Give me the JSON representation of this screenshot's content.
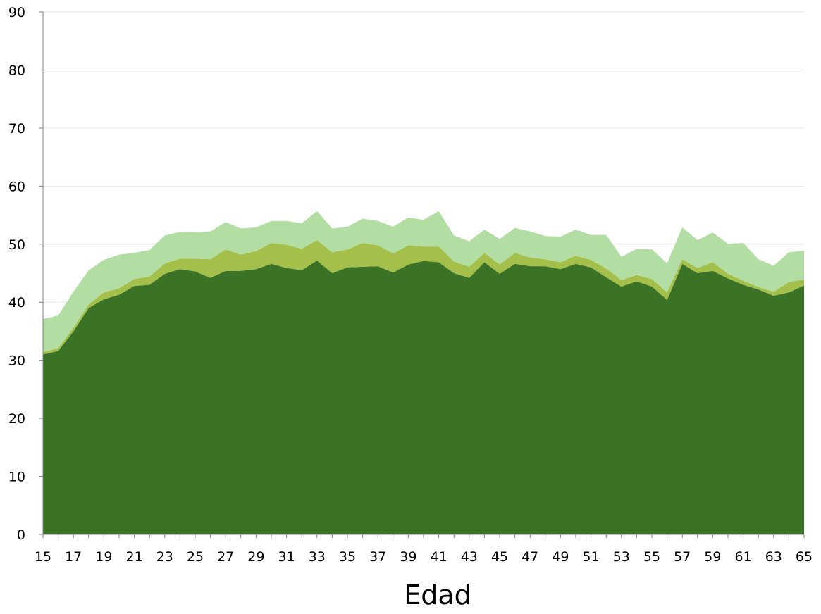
{
  "chart_data": {
    "type": "area",
    "stacked": true,
    "xlabel": "Edad",
    "ylabel": "",
    "xlim": [
      15,
      65
    ],
    "ylim": [
      0,
      90
    ],
    "y_ticks": [
      0,
      10,
      20,
      30,
      40,
      50,
      60,
      70,
      80,
      90
    ],
    "x_ticks": [
      15,
      17,
      19,
      21,
      23,
      25,
      27,
      29,
      31,
      33,
      35,
      37,
      39,
      41,
      43,
      45,
      47,
      49,
      51,
      53,
      55,
      57,
      59,
      61,
      63,
      65
    ],
    "grid": true,
    "legend": "none",
    "x": [
      15,
      16,
      17,
      18,
      19,
      20,
      21,
      22,
      23,
      24,
      25,
      26,
      27,
      28,
      29,
      30,
      31,
      32,
      33,
      34,
      35,
      36,
      37,
      38,
      39,
      40,
      41,
      42,
      43,
      44,
      45,
      46,
      47,
      48,
      49,
      50,
      51,
      52,
      53,
      54,
      55,
      56,
      57,
      58,
      59,
      60,
      61,
      62,
      63,
      64,
      65
    ],
    "series": [
      {
        "color": "#3a7226",
        "values": [
          31.0,
          31.6,
          35.0,
          39.0,
          40.5,
          41.3,
          42.8,
          43.0,
          44.9,
          45.7,
          45.3,
          44.2,
          45.4,
          45.4,
          45.7,
          46.6,
          45.9,
          45.5,
          47.2,
          45.0,
          46.0,
          46.1,
          46.2,
          45.1,
          46.5,
          47.1,
          46.9,
          45.0,
          44.2,
          46.9,
          44.9,
          46.6,
          46.2,
          46.2,
          45.7,
          46.6,
          46.0,
          44.3,
          42.7,
          43.6,
          42.7,
          40.4,
          46.6,
          45.0,
          45.4,
          44.1,
          43.0,
          42.2,
          41.1,
          41.7,
          42.9
        ]
      },
      {
        "color": "#a4c04b",
        "values": [
          0.4,
          0.5,
          0.6,
          0.6,
          1.2,
          1.1,
          1.2,
          1.4,
          1.8,
          1.8,
          2.2,
          3.2,
          3.7,
          2.8,
          3.1,
          3.6,
          4.0,
          3.7,
          3.5,
          3.6,
          3.1,
          4.1,
          3.6,
          3.3,
          3.3,
          2.5,
          2.7,
          2.0,
          1.9,
          1.6,
          1.6,
          1.9,
          1.5,
          1.2,
          1.2,
          1.4,
          1.3,
          1.5,
          1.1,
          1.1,
          1.3,
          1.3,
          0.8,
          0.9,
          1.5,
          0.8,
          0.7,
          0.4,
          0.7,
          1.8,
          1.0
        ]
      },
      {
        "color": "#b2dea4",
        "values": [
          5.7,
          5.6,
          6.2,
          5.9,
          5.6,
          5.8,
          4.5,
          4.6,
          4.8,
          4.6,
          4.5,
          4.8,
          4.7,
          4.5,
          4.1,
          3.8,
          4.1,
          4.4,
          5.0,
          4.1,
          3.9,
          4.2,
          4.2,
          4.6,
          4.8,
          4.6,
          6.1,
          4.5,
          4.4,
          4.0,
          4.4,
          4.3,
          4.5,
          4.0,
          4.4,
          4.5,
          4.3,
          5.8,
          4.0,
          4.5,
          5.1,
          5.0,
          5.5,
          4.8,
          5.1,
          5.2,
          6.5,
          4.8,
          4.5,
          5.1,
          5.0
        ]
      }
    ]
  }
}
